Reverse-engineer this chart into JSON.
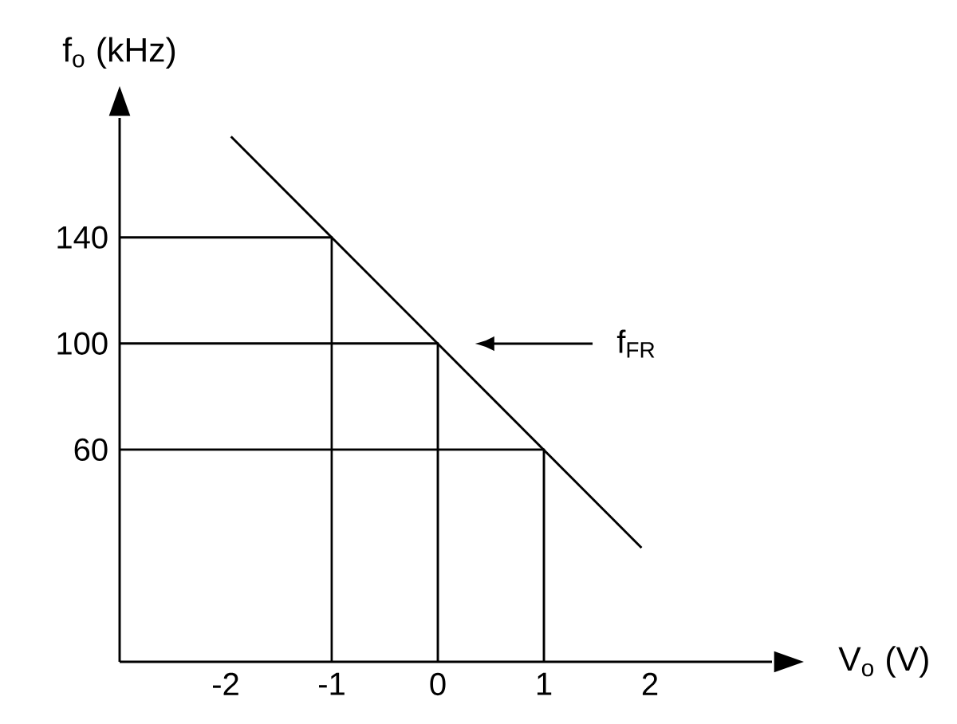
{
  "chart_data": {
    "type": "line",
    "xlabel": "V$_{o}$ (V)",
    "ylabel": "f$_{o}$ (kHz)",
    "xlim": [
      -3,
      3.15
    ],
    "ylim": [
      -20,
      185
    ],
    "xticks": [
      -2,
      -1,
      0,
      1,
      2
    ],
    "yticks": [
      60,
      100,
      140
    ],
    "series": [
      {
        "color": "#000000",
        "x": [
          -1.95,
          1.92
        ],
        "values": [
          178,
          23
        ]
      },
      {
        "color": "#000000",
        "x": [
          -3,
          -1,
          -1
        ],
        "values": [
          140,
          140,
          -20
        ]
      },
      {
        "color": "#000000",
        "x": [
          -3,
          0,
          0
        ],
        "values": [
          100,
          100,
          -20
        ]
      },
      {
        "color": "#000000",
        "x": [
          -3,
          1,
          1
        ],
        "values": [
          60,
          60,
          -20
        ]
      }
    ],
    "annotations": [
      "f$_{FR}$"
    ],
    "line_style": "solid"
  }
}
